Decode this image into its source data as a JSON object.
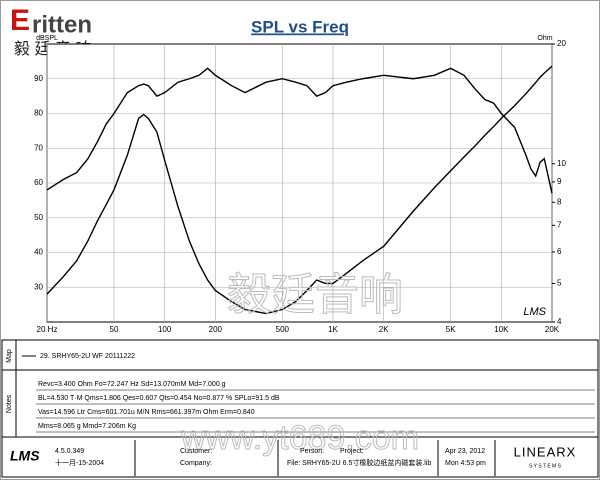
{
  "logo": {
    "brand": "ritten",
    "brand_initial": "E",
    "subtitle": "毅 廷 音 响"
  },
  "chart_data": {
    "type": "line",
    "title": "SPL vs Freq",
    "x_scale": "log",
    "y2_scale": "log",
    "ylabel": "dBSPL",
    "y2label": "Ohm",
    "grid": true,
    "corner_mark": "LMS",
    "xlim": [
      20,
      20000
    ],
    "ylim": [
      20,
      100
    ],
    "y2lim": [
      4,
      20
    ],
    "xticks": [
      {
        "value": 20,
        "label": "20  Hz"
      },
      50,
      100,
      200,
      500,
      {
        "value": 1000,
        "label": "1K"
      },
      {
        "value": 2000,
        "label": "2K"
      },
      {
        "value": 5000,
        "label": "5K"
      },
      {
        "value": 10000,
        "label": "10K"
      },
      {
        "value": 20000,
        "label": "20K"
      }
    ],
    "yticks": [
      30,
      40,
      50,
      60,
      70,
      80,
      90
    ],
    "y2ticks": [
      4,
      5,
      6,
      7,
      8,
      9,
      10,
      20
    ],
    "x": [
      20,
      25,
      30,
      35,
      40,
      45,
      50,
      60,
      70,
      75,
      80,
      90,
      100,
      120,
      140,
      160,
      180,
      200,
      250,
      300,
      400,
      500,
      600,
      700,
      800,
      900,
      1000,
      1200,
      1500,
      2000,
      3000,
      4000,
      5000,
      6000,
      7000,
      8000,
      9000,
      10000,
      12000,
      14000,
      15000,
      16000,
      17000,
      18000,
      20000
    ],
    "series": [
      {
        "name": "SPL",
        "color": "#000000",
        "values": [
          58,
          61,
          63,
          67,
          72,
          77,
          80,
          86,
          88,
          88.5,
          88,
          85,
          86,
          89,
          90,
          91,
          93,
          91,
          88,
          86,
          89,
          90,
          89,
          88,
          85,
          86,
          88,
          89,
          90,
          91,
          90,
          91,
          93,
          91,
          87,
          84,
          83,
          80,
          76,
          68,
          64,
          62,
          66,
          67,
          57
        ]
      },
      {
        "name": "Impedance",
        "color": "#000000",
        "axis": "y2",
        "values": [
          4.7,
          5.2,
          5.7,
          6.4,
          7.2,
          7.9,
          8.6,
          10.5,
          13.0,
          13.3,
          13.0,
          12.0,
          10.2,
          7.8,
          6.4,
          5.6,
          5.1,
          4.8,
          4.5,
          4.3,
          4.2,
          4.3,
          4.5,
          4.8,
          5.1,
          5.0,
          5.0,
          5.3,
          5.7,
          6.2,
          7.6,
          8.7,
          9.6,
          10.4,
          11.1,
          11.8,
          12.4,
          13.0,
          14.0,
          15.0,
          15.5,
          16.0,
          16.5,
          16.9,
          17.6
        ]
      }
    ]
  },
  "watermark": {
    "chinese": "毅廷音响",
    "url": "www.yt689.com"
  },
  "map": {
    "label": "Map",
    "entry": "29. SRHY65-2U WF 20111222"
  },
  "notes": {
    "label": "Notes",
    "lines": [
      "Revc=3.400 Ohm  Fo=72.247 Hz  Sd=13.070mM  Md=7.000 g",
      "BL=4.530 T·M  Qms=1.806  Qes=0.607  Qts=0.454  No=0.877 %  SPLo=91.5 dB",
      "Vas=14.596 Ltr  Cms=601.701u M/N  Rms=661.397m Ohm  Erm=0.840",
      "Mms=8.065 g  Mmd=7.206m Kg"
    ]
  },
  "footer": {
    "app": "LMS",
    "version": "4.5.0.349",
    "build_date": "十一月-15-2004",
    "customer": "Customer:",
    "company": "Company:",
    "person": "Person:",
    "project": "Project:",
    "file": "File: SRHY65-2U 6.5寸橡胶边纸盆内磁套装.lib",
    "date": "Apr 23, 2012",
    "time": "Mon  4:53 pm",
    "vendor": "LINEARX",
    "vendor_sub": "S Y S T E M S"
  }
}
